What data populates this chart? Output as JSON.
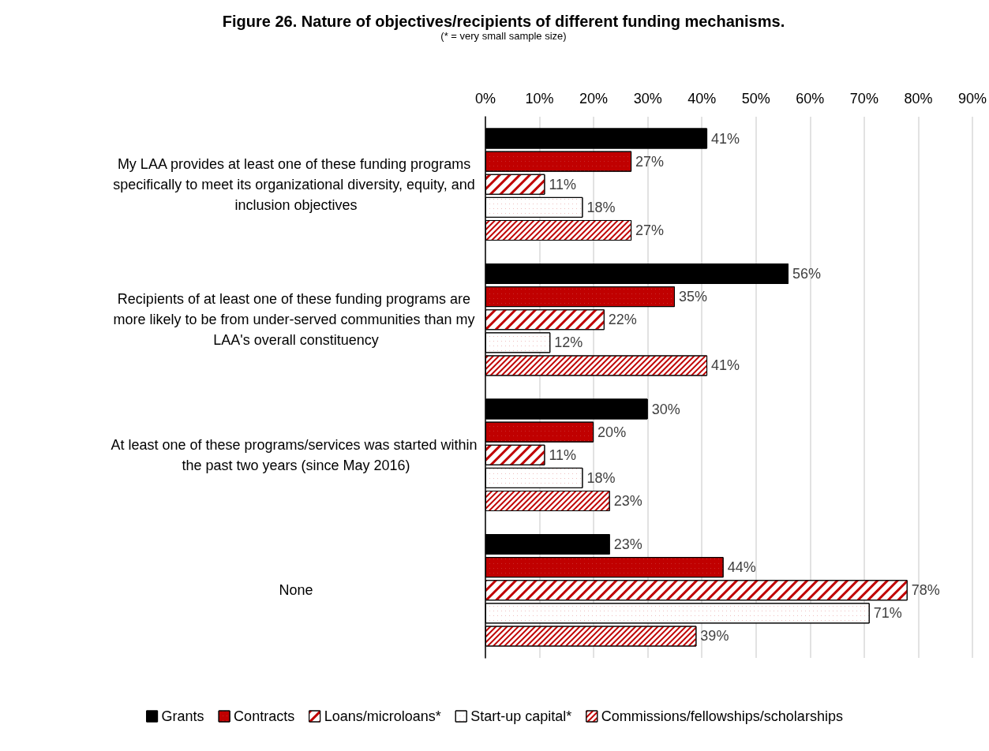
{
  "chart_data": {
    "type": "bar",
    "orientation": "horizontal",
    "title": "Figure 26. Nature of objectives/recipients of different funding mechanisms.",
    "subtitle": "(* = very small sample size)",
    "categories": [
      "My LAA provides at least one of these funding programs specifically to meet its organizational diversity, equity, and inclusion objectives",
      "Recipients of at least one of these funding programs are more likely to be from under-served communities than my LAA's overall constituency",
      "At least one of these programs/services was started within the past two years (since May 2016)",
      "None"
    ],
    "series": [
      {
        "name": "Grants",
        "color": "#000000",
        "values": [
          41,
          56,
          30,
          23
        ],
        "value_labels": [
          "41%",
          "56%",
          "30%",
          "23%"
        ]
      },
      {
        "name": "Contracts",
        "color": "#c00000",
        "values": [
          27,
          35,
          20,
          44
        ],
        "value_labels": [
          "27%",
          "35%",
          "20%",
          "44%"
        ]
      },
      {
        "name": "Loans/microloans*",
        "color": "#ffffff",
        "values": [
          11,
          22,
          11,
          78
        ],
        "value_labels": [
          "11%",
          "22%",
          "11%",
          "78%"
        ]
      },
      {
        "name": "Start-up capital*",
        "color": "#ffffff",
        "values": [
          18,
          12,
          18,
          71
        ],
        "value_labels": [
          "18%",
          "12%",
          "18%",
          "71%"
        ]
      },
      {
        "name": "Commissions/fellowships/scholarships",
        "color": "#ffffff",
        "values": [
          27,
          41,
          23,
          39
        ],
        "value_labels": [
          "27%",
          "41%",
          "23%",
          "39%"
        ]
      }
    ],
    "xlim": [
      0,
      90
    ],
    "xticks": [
      {
        "value": 0,
        "label": "0%"
      },
      {
        "value": 10,
        "label": "10%"
      },
      {
        "value": 20,
        "label": "20%"
      },
      {
        "value": 30,
        "label": "30%"
      },
      {
        "value": 40,
        "label": "40%"
      },
      {
        "value": 50,
        "label": "50%"
      },
      {
        "value": 60,
        "label": "60%"
      },
      {
        "value": 70,
        "label": "70%"
      },
      {
        "value": 80,
        "label": "80%"
      },
      {
        "value": 90,
        "label": "90%"
      }
    ],
    "grid": "x",
    "legend": "bottom"
  }
}
